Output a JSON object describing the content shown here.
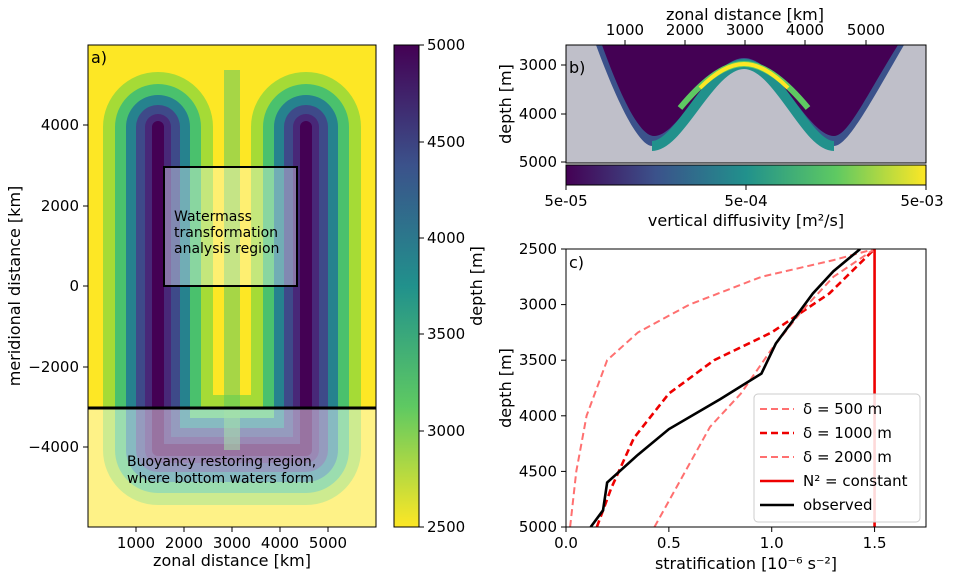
{
  "chart_data": [
    {
      "panel": "a)",
      "type": "heatmap",
      "xlabel": "zonal distance [km]",
      "ylabel": "meridional distance [km]",
      "xlim": [
        0,
        6000
      ],
      "ylim": [
        -6000,
        6000
      ],
      "x_ticks": [
        "1000",
        "2000",
        "3000",
        "4000",
        "5000"
      ],
      "y_ticks": [
        "4000",
        "2000",
        "0",
        "−2000",
        "−4000"
      ],
      "colorbar": {
        "label": "depth [m]",
        "range": [
          2500,
          5000
        ],
        "ticks": [
          "5000",
          "4500",
          "4000",
          "3500",
          "3000",
          "2500"
        ]
      },
      "annotations": {
        "box": [
          "Watermass",
          "transformation",
          "analysis region"
        ],
        "south": [
          "Buoyancy restoring region,",
          "where bottom waters form"
        ]
      },
      "analysis_box_km": {
        "x": [
          1600,
          4400
        ],
        "y": [
          0,
          2950
        ]
      },
      "restoring_boundary_km": -3000,
      "colors": {
        "shallow": "#fde725",
        "deep": "#440154"
      }
    },
    {
      "panel": "b)",
      "type": "heatmap",
      "xlabel": "zonal distance [km]",
      "ylabel": "depth [m]",
      "x_ticks": [
        "1000",
        "2000",
        "3000",
        "4000",
        "5000"
      ],
      "y_ticks": [
        "3000",
        "4000",
        "5000"
      ],
      "colorbar": {
        "label": "vertical diffusivity [m²/s]",
        "scale": "log",
        "range": [
          5e-05,
          0.005
        ],
        "ticks": [
          "5e-05",
          "5e-04",
          "5e-03"
        ]
      },
      "bathymetry_color": "#bfbfc9"
    },
    {
      "panel": "c)",
      "type": "line",
      "xlabel": "stratification [10⁻⁶ s⁻²]",
      "ylabel": "depth [m]",
      "xlim": [
        0,
        1.75
      ],
      "ylim": [
        5000,
        2500
      ],
      "x_ticks": [
        "0.0",
        "0.5",
        "1.0",
        "1.5"
      ],
      "y_ticks": [
        "2500",
        "3000",
        "3500",
        "4000",
        "4500",
        "5000"
      ],
      "legend_position": "lower-right",
      "series": [
        {
          "name": "δ = 500 m",
          "color": "#ff7070",
          "style": "dashed",
          "x": [
            0.02,
            0.05,
            0.1,
            0.2,
            0.35,
            0.6,
            0.95,
            1.3,
            1.5
          ],
          "y": [
            5000,
            4500,
            4000,
            3500,
            3250,
            3000,
            2750,
            2600,
            2500
          ]
        },
        {
          "name": "δ = 1000 m",
          "color": "#ee0000",
          "style": "dashed",
          "x": [
            0.15,
            0.22,
            0.33,
            0.5,
            0.72,
            1.0,
            1.28,
            1.5
          ],
          "y": [
            5000,
            4650,
            4200,
            3800,
            3500,
            3250,
            2900,
            2500
          ]
        },
        {
          "name": "δ = 2000 m",
          "color": "#ff7070",
          "style": "dashed",
          "x": [
            0.43,
            0.55,
            0.7,
            0.85,
            1.0,
            1.15,
            1.3,
            1.5
          ],
          "y": [
            5000,
            4600,
            4100,
            3800,
            3400,
            3050,
            2750,
            2500
          ]
        },
        {
          "name": "N² = constant",
          "color": "#ee0000",
          "style": "solid",
          "x": [
            1.5,
            1.5
          ],
          "y": [
            5000,
            2500
          ]
        },
        {
          "name": "observed",
          "color": "#000000",
          "style": "solid",
          "x": [
            0.12,
            0.18,
            0.2,
            0.35,
            0.5,
            0.75,
            0.95,
            1.02,
            1.12,
            1.2,
            1.3,
            1.43
          ],
          "y": [
            5000,
            4850,
            4600,
            4350,
            4120,
            3850,
            3620,
            3350,
            3100,
            2900,
            2700,
            2500
          ]
        }
      ]
    }
  ]
}
